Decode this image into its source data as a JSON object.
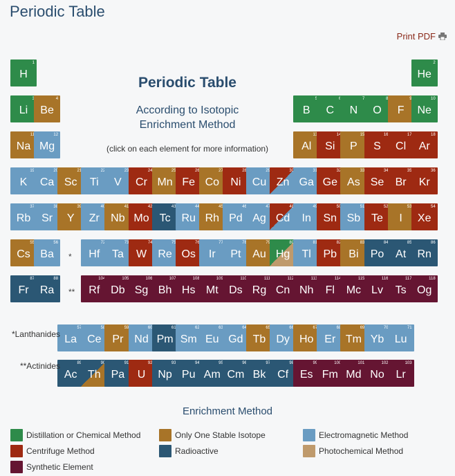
{
  "header": {
    "title": "Periodic Table",
    "print_label": "Print PDF"
  },
  "center": {
    "title": "Periodic Table",
    "subtitle_line1": "According to Isotopic",
    "subtitle_line2": "Enrichment Method",
    "note": "(click on each element for more information)"
  },
  "colors": {
    "distillation": "#2e8b4a",
    "stable": "#a87428",
    "electromagnetic": "#6a9cc2",
    "centrifuge": "#9e2a12",
    "radioactive": "#2b5774",
    "photochemical": "#bf9a6c",
    "synthetic": "#651532"
  },
  "markers": {
    "period6": "*",
    "period7": "**"
  },
  "series_labels": {
    "lanthanides": "*Lanthanides",
    "actinides": "**Actinides"
  },
  "legend": {
    "title": "Enrichment Method",
    "items": [
      {
        "key": "distillation",
        "label": "Distillation or Chemical Method"
      },
      {
        "key": "stable",
        "label": "Only One Stable Isotope"
      },
      {
        "key": "electromagnetic",
        "label": "Electromagnetic Method"
      },
      {
        "key": "centrifuge",
        "label": "Centrifuge Method"
      },
      {
        "key": "radioactive",
        "label": "Radioactive"
      },
      {
        "key": "photochemical",
        "label": "Photochemical Method"
      },
      {
        "key": "synthetic",
        "label": "Synthetic Element"
      }
    ]
  },
  "elements": [
    {
      "n": "1",
      "s": "H",
      "row": 1,
      "col": 1,
      "m": "distillation"
    },
    {
      "n": "2",
      "s": "He",
      "row": 1,
      "col": 18,
      "m": "distillation"
    },
    {
      "n": "3",
      "s": "Li",
      "row": 2,
      "col": 1,
      "m": "distillation"
    },
    {
      "n": "4",
      "s": "Be",
      "row": 2,
      "col": 2,
      "m": "stable"
    },
    {
      "n": "5",
      "s": "B",
      "row": 2,
      "col": 13,
      "m": "distillation"
    },
    {
      "n": "6",
      "s": "C",
      "row": 2,
      "col": 14,
      "m": "distillation"
    },
    {
      "n": "7",
      "s": "N",
      "row": 2,
      "col": 15,
      "m": "distillation"
    },
    {
      "n": "8",
      "s": "O",
      "row": 2,
      "col": 16,
      "m": "distillation"
    },
    {
      "n": "9",
      "s": "F",
      "row": 2,
      "col": 17,
      "m": "stable"
    },
    {
      "n": "10",
      "s": "Ne",
      "row": 2,
      "col": 18,
      "m": "distillation"
    },
    {
      "n": "11",
      "s": "Na",
      "row": 3,
      "col": 1,
      "m": "stable"
    },
    {
      "n": "12",
      "s": "Mg",
      "row": 3,
      "col": 2,
      "m": "electromagnetic"
    },
    {
      "n": "13",
      "s": "Al",
      "row": 3,
      "col": 13,
      "m": "stable"
    },
    {
      "n": "14",
      "s": "Si",
      "row": 3,
      "col": 14,
      "m": "centrifuge"
    },
    {
      "n": "15",
      "s": "P",
      "row": 3,
      "col": 15,
      "m": "stable"
    },
    {
      "n": "16",
      "s": "S",
      "row": 3,
      "col": 16,
      "m": "centrifuge"
    },
    {
      "n": "17",
      "s": "Cl",
      "row": 3,
      "col": 17,
      "m": "centrifuge"
    },
    {
      "n": "18",
      "s": "Ar",
      "row": 3,
      "col": 18,
      "m": "centrifuge"
    },
    {
      "n": "19",
      "s": "K",
      "row": 4,
      "col": 1,
      "m": "electromagnetic"
    },
    {
      "n": "20",
      "s": "Ca",
      "row": 4,
      "col": 2,
      "m": "electromagnetic"
    },
    {
      "n": "21",
      "s": "Sc",
      "row": 4,
      "col": 3,
      "m": "stable"
    },
    {
      "n": "22",
      "s": "Ti",
      "row": 4,
      "col": 4,
      "m": "electromagnetic"
    },
    {
      "n": "23",
      "s": "V",
      "row": 4,
      "col": 5,
      "m": "electromagnetic"
    },
    {
      "n": "24",
      "s": "Cr",
      "row": 4,
      "col": 6,
      "m": "centrifuge"
    },
    {
      "n": "25",
      "s": "Mn",
      "row": 4,
      "col": 7,
      "m": "stable"
    },
    {
      "n": "26",
      "s": "Fe",
      "row": 4,
      "col": 8,
      "m": "centrifuge"
    },
    {
      "n": "27",
      "s": "Co",
      "row": 4,
      "col": 9,
      "m": "stable"
    },
    {
      "n": "28",
      "s": "Ni",
      "row": 4,
      "col": 10,
      "m": "centrifuge"
    },
    {
      "n": "29",
      "s": "Cu",
      "row": 4,
      "col": 11,
      "m": "electromagnetic"
    },
    {
      "n": "30",
      "s": "Zn",
      "row": 4,
      "col": 12,
      "m": "centrifuge",
      "m2": "electromagnetic"
    },
    {
      "n": "31",
      "s": "Ga",
      "row": 4,
      "col": 13,
      "m": "electromagnetic"
    },
    {
      "n": "32",
      "s": "Ge",
      "row": 4,
      "col": 14,
      "m": "centrifuge"
    },
    {
      "n": "33",
      "s": "As",
      "row": 4,
      "col": 15,
      "m": "stable"
    },
    {
      "n": "34",
      "s": "Se",
      "row": 4,
      "col": 16,
      "m": "centrifuge"
    },
    {
      "n": "35",
      "s": "Br",
      "row": 4,
      "col": 17,
      "m": "centrifuge"
    },
    {
      "n": "36",
      "s": "Kr",
      "row": 4,
      "col": 18,
      "m": "centrifuge"
    },
    {
      "n": "37",
      "s": "Rb",
      "row": 5,
      "col": 1,
      "m": "electromagnetic"
    },
    {
      "n": "38",
      "s": "Sr",
      "row": 5,
      "col": 2,
      "m": "electromagnetic"
    },
    {
      "n": "39",
      "s": "Y",
      "row": 5,
      "col": 3,
      "m": "stable"
    },
    {
      "n": "40",
      "s": "Zr",
      "row": 5,
      "col": 4,
      "m": "electromagnetic"
    },
    {
      "n": "41",
      "s": "Nb",
      "row": 5,
      "col": 5,
      "m": "stable"
    },
    {
      "n": "42",
      "s": "Mo",
      "row": 5,
      "col": 6,
      "m": "centrifuge"
    },
    {
      "n": "43",
      "s": "Tc",
      "row": 5,
      "col": 7,
      "m": "radioactive"
    },
    {
      "n": "44",
      "s": "Ru",
      "row": 5,
      "col": 8,
      "m": "electromagnetic"
    },
    {
      "n": "45",
      "s": "Rh",
      "row": 5,
      "col": 9,
      "m": "stable"
    },
    {
      "n": "46",
      "s": "Pd",
      "row": 5,
      "col": 10,
      "m": "electromagnetic"
    },
    {
      "n": "47",
      "s": "Ag",
      "row": 5,
      "col": 11,
      "m": "electromagnetic"
    },
    {
      "n": "48",
      "s": "Cd",
      "row": 5,
      "col": 12,
      "m": "centrifuge",
      "m2": "electromagnetic"
    },
    {
      "n": "49",
      "s": "In",
      "row": 5,
      "col": 13,
      "m": "electromagnetic"
    },
    {
      "n": "50",
      "s": "Sn",
      "row": 5,
      "col": 14,
      "m": "centrifuge"
    },
    {
      "n": "51",
      "s": "Sb",
      "row": 5,
      "col": 15,
      "m": "electromagnetic"
    },
    {
      "n": "52",
      "s": "Te",
      "row": 5,
      "col": 16,
      "m": "centrifuge"
    },
    {
      "n": "53",
      "s": "I",
      "row": 5,
      "col": 17,
      "m": "stable"
    },
    {
      "n": "54",
      "s": "Xe",
      "row": 5,
      "col": 18,
      "m": "centrifuge"
    },
    {
      "n": "55",
      "s": "Cs",
      "row": 6,
      "col": 1,
      "m": "stable"
    },
    {
      "n": "56",
      "s": "Ba",
      "row": 6,
      "col": 2,
      "m": "electromagnetic"
    },
    {
      "n": "72",
      "s": "Hf",
      "row": 6,
      "col": 4,
      "m": "electromagnetic"
    },
    {
      "n": "73",
      "s": "Ta",
      "row": 6,
      "col": 5,
      "m": "electromagnetic"
    },
    {
      "n": "74",
      "s": "W",
      "row": 6,
      "col": 6,
      "m": "centrifuge"
    },
    {
      "n": "75",
      "s": "Re",
      "row": 6,
      "col": 7,
      "m": "electromagnetic"
    },
    {
      "n": "76",
      "s": "Os",
      "row": 6,
      "col": 8,
      "m": "centrifuge"
    },
    {
      "n": "77",
      "s": "Ir",
      "row": 6,
      "col": 9,
      "m": "electromagnetic"
    },
    {
      "n": "78",
      "s": "Pt",
      "row": 6,
      "col": 10,
      "m": "electromagnetic"
    },
    {
      "n": "79",
      "s": "Au",
      "row": 6,
      "col": 11,
      "m": "stable"
    },
    {
      "n": "80",
      "s": "Hg",
      "row": 6,
      "col": 12,
      "m": "distillation",
      "m2": "photochemical"
    },
    {
      "n": "81",
      "s": "Tl",
      "row": 6,
      "col": 13,
      "m": "electromagnetic"
    },
    {
      "n": "82",
      "s": "Pb",
      "row": 6,
      "col": 14,
      "m": "centrifuge"
    },
    {
      "n": "83",
      "s": "Bi",
      "row": 6,
      "col": 15,
      "m": "stable"
    },
    {
      "n": "84",
      "s": "Po",
      "row": 6,
      "col": 16,
      "m": "radioactive"
    },
    {
      "n": "85",
      "s": "At",
      "row": 6,
      "col": 17,
      "m": "radioactive"
    },
    {
      "n": "86",
      "s": "Rn",
      "row": 6,
      "col": 18,
      "m": "radioactive"
    },
    {
      "n": "87",
      "s": "Fr",
      "row": 7,
      "col": 1,
      "m": "radioactive"
    },
    {
      "n": "88",
      "s": "Ra",
      "row": 7,
      "col": 2,
      "m": "radioactive"
    },
    {
      "n": "104",
      "s": "Rf",
      "row": 7,
      "col": 4,
      "m": "synthetic"
    },
    {
      "n": "105",
      "s": "Db",
      "row": 7,
      "col": 5,
      "m": "synthetic"
    },
    {
      "n": "106",
      "s": "Sg",
      "row": 7,
      "col": 6,
      "m": "synthetic"
    },
    {
      "n": "107",
      "s": "Bh",
      "row": 7,
      "col": 7,
      "m": "synthetic"
    },
    {
      "n": "108",
      "s": "Hs",
      "row": 7,
      "col": 8,
      "m": "synthetic"
    },
    {
      "n": "109",
      "s": "Mt",
      "row": 7,
      "col": 9,
      "m": "synthetic"
    },
    {
      "n": "110",
      "s": "Ds",
      "row": 7,
      "col": 10,
      "m": "synthetic"
    },
    {
      "n": "111",
      "s": "Rg",
      "row": 7,
      "col": 11,
      "m": "synthetic"
    },
    {
      "n": "112",
      "s": "Cn",
      "row": 7,
      "col": 12,
      "m": "synthetic"
    },
    {
      "n": "113",
      "s": "Nh",
      "row": 7,
      "col": 13,
      "m": "synthetic"
    },
    {
      "n": "114",
      "s": "Fl",
      "row": 7,
      "col": 14,
      "m": "synthetic"
    },
    {
      "n": "115",
      "s": "Mc",
      "row": 7,
      "col": 15,
      "m": "synthetic"
    },
    {
      "n": "116",
      "s": "Lv",
      "row": 7,
      "col": 16,
      "m": "synthetic"
    },
    {
      "n": "117",
      "s": "Ts",
      "row": 7,
      "col": 17,
      "m": "synthetic"
    },
    {
      "n": "118",
      "s": "Og",
      "row": 7,
      "col": 18,
      "m": "synthetic"
    },
    {
      "n": "57",
      "s": "La",
      "row": 8,
      "col": 3,
      "m": "electromagnetic"
    },
    {
      "n": "58",
      "s": "Ce",
      "row": 8,
      "col": 4,
      "m": "electromagnetic"
    },
    {
      "n": "59",
      "s": "Pr",
      "row": 8,
      "col": 5,
      "m": "stable"
    },
    {
      "n": "60",
      "s": "Nd",
      "row": 8,
      "col": 6,
      "m": "electromagnetic"
    },
    {
      "n": "61",
      "s": "Pm",
      "row": 8,
      "col": 7,
      "m": "radioactive"
    },
    {
      "n": "62",
      "s": "Sm",
      "row": 8,
      "col": 8,
      "m": "electromagnetic"
    },
    {
      "n": "63",
      "s": "Eu",
      "row": 8,
      "col": 9,
      "m": "electromagnetic"
    },
    {
      "n": "64",
      "s": "Gd",
      "row": 8,
      "col": 10,
      "m": "electromagnetic"
    },
    {
      "n": "65",
      "s": "Tb",
      "row": 8,
      "col": 11,
      "m": "stable"
    },
    {
      "n": "66",
      "s": "Dy",
      "row": 8,
      "col": 12,
      "m": "electromagnetic"
    },
    {
      "n": "67",
      "s": "Ho",
      "row": 8,
      "col": 13,
      "m": "stable"
    },
    {
      "n": "68",
      "s": "Er",
      "row": 8,
      "col": 14,
      "m": "electromagnetic"
    },
    {
      "n": "69",
      "s": "Tm",
      "row": 8,
      "col": 15,
      "m": "stable"
    },
    {
      "n": "70",
      "s": "Yb",
      "row": 8,
      "col": 16,
      "m": "electromagnetic"
    },
    {
      "n": "71",
      "s": "Lu",
      "row": 8,
      "col": 17,
      "m": "electromagnetic"
    },
    {
      "n": "89",
      "s": "Ac",
      "row": 9,
      "col": 3,
      "m": "radioactive"
    },
    {
      "n": "90",
      "s": "Th",
      "row": 9,
      "col": 4,
      "m": "radioactive",
      "m2": "stable"
    },
    {
      "n": "91",
      "s": "Pa",
      "row": 9,
      "col": 5,
      "m": "radioactive"
    },
    {
      "n": "92",
      "s": "U",
      "row": 9,
      "col": 6,
      "m": "centrifuge"
    },
    {
      "n": "93",
      "s": "Np",
      "row": 9,
      "col": 7,
      "m": "radioactive"
    },
    {
      "n": "94",
      "s": "Pu",
      "row": 9,
      "col": 8,
      "m": "radioactive"
    },
    {
      "n": "95",
      "s": "Am",
      "row": 9,
      "col": 9,
      "m": "radioactive"
    },
    {
      "n": "96",
      "s": "Cm",
      "row": 9,
      "col": 10,
      "m": "radioactive"
    },
    {
      "n": "97",
      "s": "Bk",
      "row": 9,
      "col": 11,
      "m": "radioactive"
    },
    {
      "n": "98",
      "s": "Cf",
      "row": 9,
      "col": 12,
      "m": "radioactive"
    },
    {
      "n": "99",
      "s": "Es",
      "row": 9,
      "col": 13,
      "m": "synthetic"
    },
    {
      "n": "100",
      "s": "Fm",
      "row": 9,
      "col": 14,
      "m": "synthetic"
    },
    {
      "n": "101",
      "s": "Md",
      "row": 9,
      "col": 15,
      "m": "synthetic"
    },
    {
      "n": "102",
      "s": "No",
      "row": 9,
      "col": 16,
      "m": "synthetic"
    },
    {
      "n": "103",
      "s": "Lr",
      "row": 9,
      "col": 17,
      "m": "synthetic"
    }
  ]
}
